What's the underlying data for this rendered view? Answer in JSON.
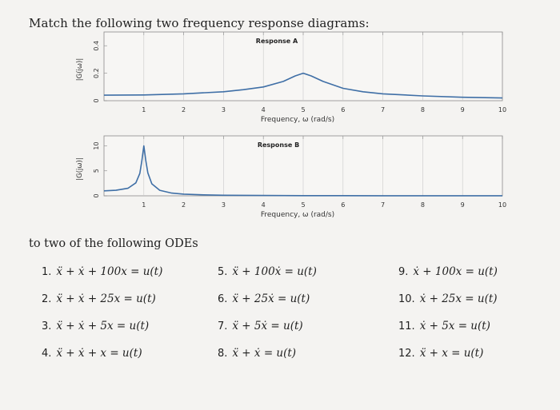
{
  "heading": "Match the following two frequency response diagrams:",
  "chart_data": [
    {
      "type": "line",
      "title": "Response A",
      "xlabel": "Frequency, ω (rad/s)",
      "ylabel": "|G(jω)|",
      "xlim": [
        0,
        10
      ],
      "ylim": [
        0,
        0.5
      ],
      "xticks": [
        "1",
        "2",
        "3",
        "4",
        "5",
        "6",
        "7",
        "8",
        "9",
        "10"
      ],
      "yticks": [
        "0",
        "0.2",
        "0.4"
      ],
      "grid": true,
      "series": [
        {
          "x": [
            0,
            1,
            2,
            3,
            3.5,
            4,
            4.5,
            4.8,
            5,
            5.2,
            5.5,
            6,
            6.5,
            7,
            8,
            9,
            10
          ],
          "y": [
            0.04,
            0.042,
            0.05,
            0.065,
            0.08,
            0.1,
            0.14,
            0.18,
            0.2,
            0.18,
            0.14,
            0.09,
            0.065,
            0.05,
            0.035,
            0.025,
            0.02
          ]
        }
      ]
    },
    {
      "type": "line",
      "title": "Response B",
      "xlabel": "Frequency, ω (rad/s)",
      "ylabel": "|G(jω)|",
      "xlim": [
        0,
        10
      ],
      "ylim": [
        0,
        12
      ],
      "xticks": [
        "1",
        "2",
        "3",
        "4",
        "5",
        "6",
        "7",
        "8",
        "9",
        "10"
      ],
      "yticks": [
        "0",
        "5",
        "10"
      ],
      "grid": true,
      "series": [
        {
          "x": [
            0,
            0.3,
            0.6,
            0.8,
            0.9,
            0.95,
            1.0,
            1.05,
            1.1,
            1.2,
            1.4,
            1.7,
            2,
            2.5,
            3,
            4,
            5,
            6,
            7,
            8,
            9,
            10
          ],
          "y": [
            1.0,
            1.1,
            1.5,
            2.6,
            4.5,
            7.0,
            10.0,
            7.0,
            4.6,
            2.4,
            1.1,
            0.55,
            0.33,
            0.19,
            0.12,
            0.07,
            0.04,
            0.03,
            0.02,
            0.015,
            0.012,
            0.01
          ]
        }
      ]
    }
  ],
  "odes_heading": "to two of the following ODEs",
  "odes": [
    {
      "num": "1.",
      "eq": "ẍ + ẋ + 100x = u(t)"
    },
    {
      "num": "2.",
      "eq": "ẍ + ẋ + 25x = u(t)"
    },
    {
      "num": "3.",
      "eq": "ẍ + ẋ + 5x = u(t)"
    },
    {
      "num": "4.",
      "eq": "ẍ + ẋ + x = u(t)"
    },
    {
      "num": "5.",
      "eq": "ẍ + 100ẋ = u(t)"
    },
    {
      "num": "6.",
      "eq": "ẍ + 25ẋ = u(t)"
    },
    {
      "num": "7.",
      "eq": "ẍ + 5ẋ = u(t)"
    },
    {
      "num": "8.",
      "eq": "ẍ + ẋ = u(t)"
    },
    {
      "num": "9.",
      "eq": "ẋ + 100x = u(t)"
    },
    {
      "num": "10.",
      "eq": "ẋ + 25x = u(t)"
    },
    {
      "num": "11.",
      "eq": "ẋ + 5x = u(t)"
    },
    {
      "num": "12.",
      "eq": "ẍ + x = u(t)"
    }
  ],
  "colors": {
    "curve": "#3f6fa6",
    "grid": "#c9c9c9",
    "axis": "#8a8a8a"
  }
}
